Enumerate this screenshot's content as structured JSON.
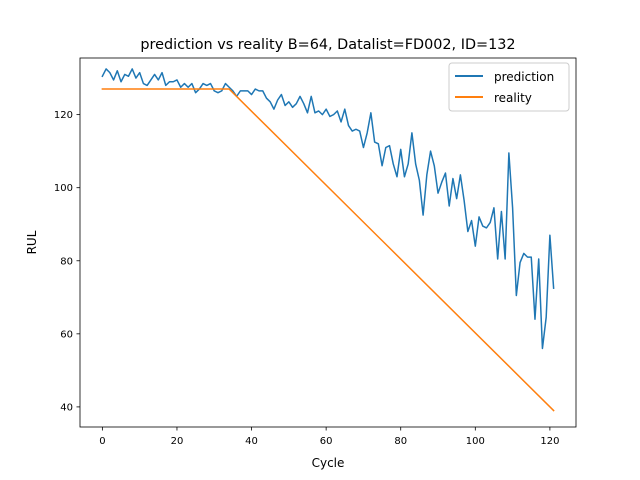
{
  "chart_data": {
    "type": "line",
    "title": "prediction vs reality B=64, Datalist=FD002, ID=132",
    "xlabel": "Cycle",
    "ylabel": "RUL",
    "xlim": [
      -6,
      127
    ],
    "ylim": [
      34.5,
      135.5
    ],
    "xticks": [
      0,
      20,
      40,
      60,
      80,
      100,
      120
    ],
    "yticks": [
      40,
      60,
      80,
      100,
      120
    ],
    "grid": false,
    "legend_position": "upper right",
    "series": [
      {
        "name": "prediction",
        "color": "#1f77b4",
        "x": [
          0,
          1,
          2,
          3,
          4,
          5,
          6,
          7,
          8,
          9,
          10,
          11,
          12,
          13,
          14,
          15,
          16,
          17,
          18,
          19,
          20,
          21,
          22,
          23,
          24,
          25,
          26,
          27,
          28,
          29,
          30,
          31,
          32,
          33,
          34,
          35,
          36,
          37,
          38,
          39,
          40,
          41,
          42,
          43,
          44,
          45,
          46,
          47,
          48,
          49,
          50,
          51,
          52,
          53,
          54,
          55,
          56,
          57,
          58,
          59,
          60,
          61,
          62,
          63,
          64,
          65,
          66,
          67,
          68,
          69,
          70,
          71,
          72,
          73,
          74,
          75,
          76,
          77,
          78,
          79,
          80,
          81,
          82,
          83,
          84,
          85,
          86,
          87,
          88,
          89,
          90,
          91,
          92,
          93,
          94,
          95,
          96,
          97,
          98,
          99,
          100,
          101,
          102,
          103,
          104,
          105,
          106,
          107,
          108,
          109,
          110,
          111,
          112,
          113,
          114,
          115,
          116,
          117,
          118,
          119,
          120,
          121
        ],
        "y": [
          130.5,
          132.5,
          131.5,
          129.5,
          132.0,
          129.0,
          131.0,
          130.5,
          132.5,
          130.0,
          131.5,
          128.5,
          128.0,
          129.5,
          131.0,
          129.5,
          131.5,
          128.0,
          129.0,
          129.0,
          129.5,
          127.5,
          128.5,
          127.5,
          128.5,
          126.0,
          127.0,
          128.5,
          128.0,
          128.5,
          126.5,
          126.0,
          126.5,
          128.5,
          127.5,
          126.5,
          125.0,
          126.5,
          126.5,
          126.5,
          125.5,
          127.0,
          126.5,
          126.5,
          124.5,
          123.5,
          121.5,
          124.0,
          125.5,
          122.5,
          123.5,
          122.0,
          123.0,
          125.0,
          123.0,
          120.5,
          125.0,
          120.5,
          121.0,
          120.0,
          121.5,
          119.5,
          120.0,
          121.0,
          118.0,
          121.5,
          117.0,
          115.5,
          116.0,
          115.5,
          111.0,
          115.0,
          120.5,
          112.5,
          112.0,
          106.0,
          111.0,
          111.5,
          106.5,
          103.0,
          110.5,
          103.0,
          106.5,
          115.0,
          106.5,
          102.0,
          92.5,
          103.5,
          110.0,
          106.0,
          98.5,
          101.5,
          104.0,
          95.0,
          102.5,
          97.0,
          103.5,
          96.5,
          88.0,
          91.0,
          84.0,
          92.0,
          89.5,
          89.0,
          90.5,
          94.5,
          80.5,
          93.5,
          80.5,
          109.5,
          94.5,
          70.5,
          79.5,
          82.0,
          81.0,
          81.0,
          64.0,
          80.5,
          56.0,
          64.5,
          87.0,
          72.5
        ]
      },
      {
        "name": "reality",
        "color": "#ff7f0e",
        "x": [
          0,
          34,
          121
        ],
        "y": [
          127,
          127,
          39
        ]
      }
    ]
  }
}
